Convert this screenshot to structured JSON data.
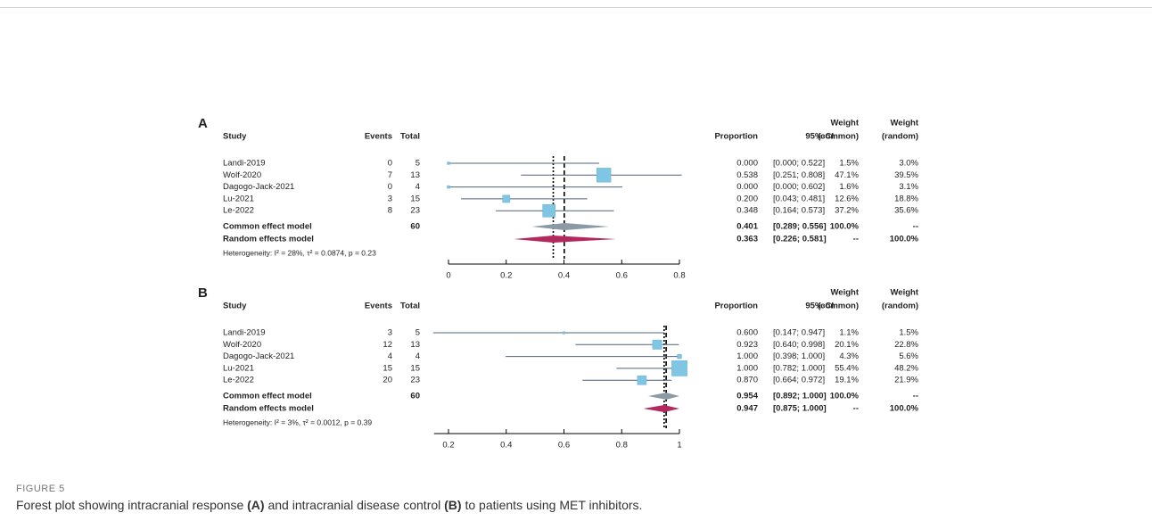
{
  "chart_data": [
    {
      "type": "forest",
      "label": "A",
      "headers": {
        "study": "Study",
        "events": "Events",
        "total": "Total",
        "proportion": "Proportion",
        "ci": "95%-CI",
        "weight_common": [
          "Weight",
          "(common)"
        ],
        "weight_random": [
          "Weight",
          "(random)"
        ]
      },
      "studies": [
        "Landi-2019",
        "Wolf-2020",
        "Dagogo-Jack-2021",
        "Lu-2021",
        "Le-2022"
      ],
      "events": [
        0,
        7,
        0,
        3,
        8
      ],
      "totals": [
        5,
        13,
        4,
        15,
        23
      ],
      "proportions": [
        0,
        0.538,
        0,
        0.2,
        0.348
      ],
      "proportion_labels": [
        "0.000",
        "0.538",
        "0.000",
        "0.200",
        "0.348"
      ],
      "ci_low": [
        0,
        0.251,
        0,
        0.043,
        0.164
      ],
      "ci_high": [
        0.522,
        0.808,
        0.602,
        0.481,
        0.573
      ],
      "ci_labels": [
        "[0.000; 0.522]",
        "[0.251; 0.808]",
        "[0.000; 0.602]",
        "[0.043; 0.481]",
        "[0.164; 0.573]"
      ],
      "weight_common": [
        1.5,
        47.1,
        1.6,
        12.6,
        37.2
      ],
      "weight_common_labels": [
        "1.5%",
        "47.1%",
        "1.6%",
        "12.6%",
        "37.2%"
      ],
      "weight_random": [
        3.0,
        39.5,
        3.1,
        18.8,
        35.6
      ],
      "weight_random_labels": [
        "3.0%",
        "39.5%",
        "3.1%",
        "18.8%",
        "35.6%"
      ],
      "common": {
        "name": "Common effect model",
        "total": 60,
        "proportion": 0.401,
        "proportion_label": "0.401",
        "ci_low": 0.289,
        "ci_high": 0.556,
        "ci_label": "[0.289; 0.556]",
        "weight_common": 100,
        "weight_common_label": "100.0%",
        "weight_random_label": "--"
      },
      "random": {
        "name": "Random effects model",
        "proportion": 0.363,
        "proportion_label": "0.363",
        "ci_low": 0.226,
        "ci_high": 0.581,
        "ci_label": "[0.226; 0.581]",
        "weight_common_label": "--",
        "weight_random": 100,
        "weight_random_label": "100.0%"
      },
      "heterogeneity": "Heterogeneity: I² = 28%, τ² = 0.0874, p = 0.23",
      "xlim": [
        0,
        0.8
      ],
      "xticks": [
        0,
        0.2,
        0.4,
        0.6,
        0.8
      ],
      "colors": {
        "square": "#7fc6e4",
        "ci": "#4f6479",
        "common": "#8c9aa6",
        "random": "#b3285e"
      }
    },
    {
      "type": "forest",
      "label": "B",
      "headers": {
        "study": "Study",
        "events": "Events",
        "total": "Total",
        "proportion": "Proportion",
        "ci": "95%-CI",
        "weight_common": [
          "Weight",
          "(common)"
        ],
        "weight_random": [
          "Weight",
          "(random)"
        ]
      },
      "studies": [
        "Landi-2019",
        "Wolf-2020",
        "Dagogo-Jack-2021",
        "Lu-2021",
        "Le-2022"
      ],
      "events": [
        3,
        12,
        4,
        15,
        20
      ],
      "totals": [
        5,
        13,
        4,
        15,
        23
      ],
      "proportions": [
        0.6,
        0.923,
        1,
        1,
        0.87
      ],
      "proportion_labels": [
        "0.600",
        "0.923",
        "1.000",
        "1.000",
        "0.870"
      ],
      "ci_low": [
        0.147,
        0.64,
        0.398,
        0.782,
        0.664
      ],
      "ci_high": [
        0.947,
        0.998,
        1,
        1,
        0.972
      ],
      "ci_labels": [
        "[0.147; 0.947]",
        "[0.640; 0.998]",
        "[0.398; 1.000]",
        "[0.782; 1.000]",
        "[0.664; 0.972]"
      ],
      "weight_common": [
        1.1,
        20.1,
        4.3,
        55.4,
        19.1
      ],
      "weight_common_labels": [
        "1.1%",
        "20.1%",
        "4.3%",
        "55.4%",
        "19.1%"
      ],
      "weight_random": [
        1.5,
        22.8,
        5.6,
        48.2,
        21.9
      ],
      "weight_random_labels": [
        "1.5%",
        "22.8%",
        "5.6%",
        "48.2%",
        "21.9%"
      ],
      "common": {
        "name": "Common effect model",
        "total": 60,
        "proportion": 0.954,
        "proportion_label": "0.954",
        "ci_low": 0.892,
        "ci_high": 1,
        "ci_label": "[0.892; 1.000]",
        "weight_common": 100,
        "weight_common_label": "100.0%",
        "weight_random_label": "--"
      },
      "random": {
        "name": "Random effects model",
        "proportion": 0.947,
        "proportion_label": "0.947",
        "ci_low": 0.875,
        "ci_high": 1,
        "ci_label": "[0.875; 1.000]",
        "weight_common_label": "--",
        "weight_random": 100,
        "weight_random_label": "100.0%"
      },
      "heterogeneity": "Heterogeneity: I² = 3%, τ² = 0.0012, p = 0.39",
      "xlim": [
        0.15,
        1
      ],
      "xticks": [
        0.2,
        0.4,
        0.6,
        0.8,
        1
      ],
      "colors": {
        "square": "#7fc6e4",
        "ci": "#4f6479",
        "common": "#8c9aa6",
        "random": "#b3285e"
      }
    }
  ],
  "figure": {
    "number": "FIGURE 5",
    "caption": [
      "Forest plot showing intracranial response ",
      "(A)",
      " and intracranial disease control ",
      "(B)",
      " to patients using MET inhibitors."
    ]
  }
}
